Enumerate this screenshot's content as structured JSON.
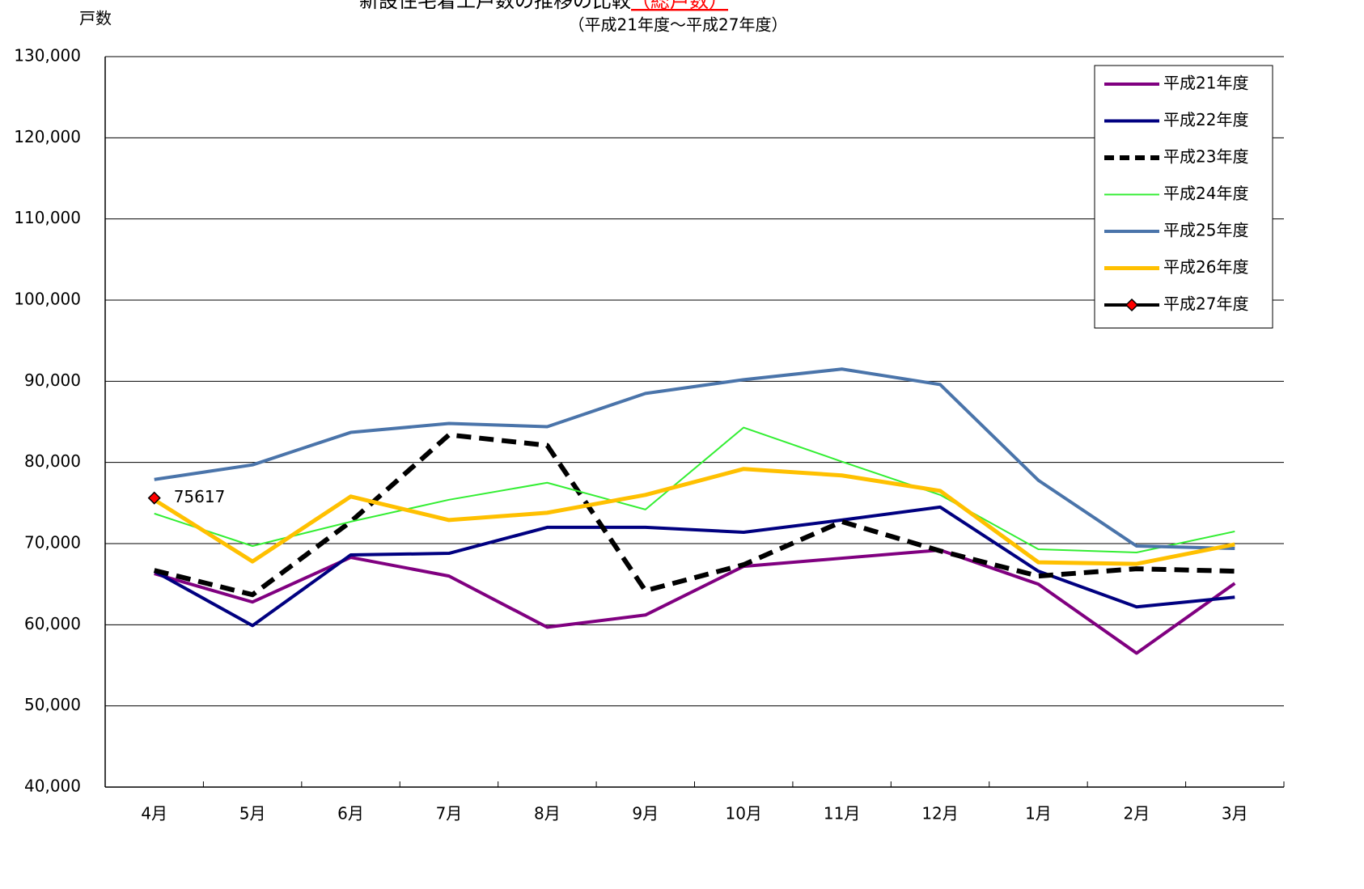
{
  "chart_data": {
    "type": "line",
    "title": "新設住宅着工戸数の推移の比較",
    "title_highlight": "（総戸数）",
    "subtitle": "（平成21年度～平成27年度）",
    "y_label": "戸数",
    "categories": [
      "4月",
      "5月",
      "6月",
      "7月",
      "8月",
      "9月",
      "10月",
      "11月",
      "12月",
      "1月",
      "2月",
      "3月"
    ],
    "ylim": [
      40000,
      130000
    ],
    "yticks": [
      {
        "value": 40000,
        "label": "40,000"
      },
      {
        "value": 50000,
        "label": "50,000"
      },
      {
        "value": 60000,
        "label": "60,000"
      },
      {
        "value": 70000,
        "label": "70,000"
      },
      {
        "value": 80000,
        "label": "80,000"
      },
      {
        "value": 90000,
        "label": "90,000"
      },
      {
        "value": 100000,
        "label": "100,000"
      },
      {
        "value": 110000,
        "label": "110,000"
      },
      {
        "value": 120000,
        "label": "120,000"
      },
      {
        "value": 130000,
        "label": "130,000"
      }
    ],
    "grid": true,
    "legend": "top-right",
    "series": [
      {
        "name": "平成21年度",
        "color": "#800080",
        "width": 4,
        "values": [
          66300,
          62800,
          68300,
          66000,
          59700,
          61200,
          67200,
          68200,
          69200,
          65000,
          56500,
          65100
        ]
      },
      {
        "name": "平成22年度",
        "color": "#000080",
        "width": 4,
        "values": [
          66600,
          59900,
          68600,
          68800,
          72000,
          72000,
          71400,
          72900,
          74500,
          66600,
          62200,
          63400
        ]
      },
      {
        "name": "平成23年度",
        "color": "#000000",
        "width": 6,
        "dashed": true,
        "values": [
          66700,
          63700,
          72700,
          83400,
          82100,
          64200,
          67400,
          72700,
          69100,
          66000,
          66900,
          66600
        ]
      },
      {
        "name": "平成24年度",
        "color": "#33ee33",
        "width": 2,
        "values": [
          73700,
          69700,
          72700,
          75400,
          77500,
          74200,
          84300,
          80100,
          76000,
          69300,
          68900,
          71500
        ]
      },
      {
        "name": "平成25年度",
        "color": "#4a74aa",
        "width": 4,
        "values": [
          77900,
          79700,
          83700,
          84800,
          84400,
          88500,
          90200,
          91500,
          89600,
          77800,
          69700,
          69400
        ]
      },
      {
        "name": "平成26年度",
        "color": "#ffc000",
        "width": 5,
        "values": [
          75400,
          67800,
          75800,
          72900,
          73800,
          76000,
          79200,
          78400,
          76500,
          67700,
          67500,
          69900
        ]
      },
      {
        "name": "平成27年度",
        "color": "#000000",
        "width": 4,
        "marker": "diamond",
        "marker_color": "#ff0000",
        "data_labels": true,
        "values": [
          75617,
          null,
          null,
          null,
          null,
          null,
          null,
          null,
          null,
          null,
          null,
          null
        ]
      }
    ]
  }
}
